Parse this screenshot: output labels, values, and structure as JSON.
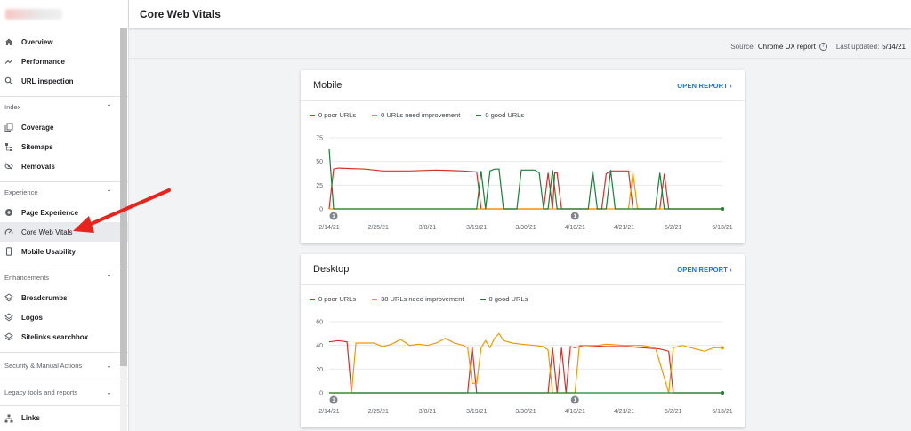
{
  "header": {
    "title": "Core Web Vitals"
  },
  "source_bar": {
    "source_label": "Source:",
    "source_value": "Chrome UX report",
    "updated_label": "Last updated:",
    "updated_value": "5/14/21"
  },
  "sidebar": {
    "top_items": [
      {
        "label": "Overview",
        "icon": "home-icon"
      },
      {
        "label": "Performance",
        "icon": "trending-up-icon"
      },
      {
        "label": "URL inspection",
        "icon": "search-icon"
      }
    ],
    "index": {
      "label": "Index",
      "items": [
        {
          "label": "Coverage",
          "icon": "coverage-icon"
        },
        {
          "label": "Sitemaps",
          "icon": "sitemap-icon"
        },
        {
          "label": "Removals",
          "icon": "removals-icon"
        }
      ]
    },
    "experience": {
      "label": "Experience",
      "items": [
        {
          "label": "Page Experience",
          "icon": "add-circle-icon"
        },
        {
          "label": "Core Web Vitals",
          "icon": "speedometer-icon"
        },
        {
          "label": "Mobile Usability",
          "icon": "phone-icon"
        }
      ]
    },
    "enhancements": {
      "label": "Enhancements",
      "items": [
        {
          "label": "Breadcrumbs",
          "icon": "layers-icon"
        },
        {
          "label": "Logos",
          "icon": "layers-icon"
        },
        {
          "label": "Sitelinks searchbox",
          "icon": "layers-icon"
        }
      ]
    },
    "security": {
      "label": "Security & Manual Actions"
    },
    "legacy": {
      "label": "Legacy tools and reports"
    },
    "links": {
      "label": "Links",
      "icon": "links-icon"
    }
  },
  "colors": {
    "poor": "#d93025",
    "needs_improvement": "#f29900",
    "good": "#188038",
    "accent": "#1a73e8",
    "arrow": "#e8231c"
  },
  "chart_data": [
    {
      "type": "line",
      "title": "Mobile",
      "action": "OPEN REPORT",
      "legend": [
        "0 poor URLs",
        "0 URLs need improvement",
        "0 good URLs"
      ],
      "x_ticks": [
        "2/14/21",
        "2/25/21",
        "3/8/21",
        "3/19/21",
        "3/30/21",
        "4/10/21",
        "4/21/21",
        "5/2/21",
        "5/13/21"
      ],
      "y_ticks": [
        0,
        25,
        50,
        75
      ],
      "ylim": [
        0,
        75
      ],
      "annotations": [
        "1",
        "1"
      ],
      "annotation_days": [
        1,
        55
      ],
      "grid": true,
      "days": 89,
      "series": [
        {
          "name": "poor",
          "points": [
            [
              0,
              0
            ],
            [
              1,
              42
            ],
            [
              2,
              43
            ],
            [
              8,
              42
            ],
            [
              12,
              40
            ],
            [
              18,
              40
            ],
            [
              24,
              41
            ],
            [
              30,
              40
            ],
            [
              33,
              39
            ],
            [
              34,
              0
            ],
            [
              48,
              0
            ],
            [
              49,
              38
            ],
            [
              50,
              0
            ],
            [
              50.5,
              38
            ],
            [
              51,
              38
            ],
            [
              52,
              0
            ],
            [
              61,
              0
            ],
            [
              62,
              37
            ],
            [
              63,
              40
            ],
            [
              67,
              40
            ],
            [
              68,
              0
            ],
            [
              74,
              0
            ],
            [
              75,
              37
            ],
            [
              76,
              0
            ],
            [
              88,
              0
            ]
          ]
        },
        {
          "name": "needs improvement",
          "points": [
            [
              0,
              0
            ],
            [
              67,
              0
            ],
            [
              68,
              38
            ],
            [
              69,
              0
            ],
            [
              88,
              0
            ]
          ]
        },
        {
          "name": "good",
          "points": [
            [
              0,
              63
            ],
            [
              1,
              0
            ],
            [
              33,
              0
            ],
            [
              34,
              40
            ],
            [
              35,
              0
            ],
            [
              36,
              40
            ],
            [
              37,
              42
            ],
            [
              38,
              42
            ],
            [
              39,
              0
            ],
            [
              42,
              0
            ],
            [
              43,
              41
            ],
            [
              46,
              41
            ],
            [
              47,
              38
            ],
            [
              48,
              0
            ],
            [
              49,
              0
            ],
            [
              50,
              41
            ],
            [
              51,
              0
            ],
            [
              58,
              0
            ],
            [
              59,
              40
            ],
            [
              60,
              0
            ],
            [
              62,
              0
            ],
            [
              63,
              41
            ],
            [
              64,
              0
            ],
            [
              73,
              0
            ],
            [
              74,
              38
            ],
            [
              75,
              0
            ],
            [
              88,
              0
            ]
          ]
        }
      ]
    },
    {
      "type": "line",
      "title": "Desktop",
      "action": "OPEN REPORT",
      "legend": [
        "0 poor URLs",
        "38 URLs need improvement",
        "0 good URLs"
      ],
      "x_ticks": [
        "2/14/21",
        "2/25/21",
        "3/8/21",
        "3/19/21",
        "3/30/21",
        "4/10/21",
        "4/21/21",
        "5/2/21",
        "5/13/21"
      ],
      "y_ticks": [
        0,
        20,
        40,
        60
      ],
      "ylim": [
        0,
        60
      ],
      "annotations": [
        "1",
        "1"
      ],
      "annotation_days": [
        1,
        55
      ],
      "grid": true,
      "days": 89,
      "series": [
        {
          "name": "poor",
          "points": [
            [
              0,
              43
            ],
            [
              2,
              44
            ],
            [
              4,
              43
            ],
            [
              5,
              0
            ],
            [
              31,
              0
            ],
            [
              32,
              39
            ],
            [
              33,
              0
            ],
            [
              49,
              0
            ],
            [
              50,
              38
            ],
            [
              51,
              0
            ],
            [
              52,
              38
            ],
            [
              53,
              0
            ],
            [
              54,
              39
            ],
            [
              55,
              38
            ],
            [
              57,
              40
            ],
            [
              62,
              39
            ],
            [
              67,
              39
            ],
            [
              70,
              38
            ],
            [
              74,
              37
            ],
            [
              76,
              35
            ],
            [
              77,
              0
            ],
            [
              88,
              0
            ]
          ]
        },
        {
          "name": "needs improvement",
          "points": [
            [
              0,
              0
            ],
            [
              5,
              0
            ],
            [
              6,
              42
            ],
            [
              10,
              42
            ],
            [
              12,
              39
            ],
            [
              14,
              41
            ],
            [
              16,
              45
            ],
            [
              18,
              40
            ],
            [
              20,
              41
            ],
            [
              22,
              40
            ],
            [
              24,
              42
            ],
            [
              26,
              46
            ],
            [
              28,
              42
            ],
            [
              30,
              40
            ],
            [
              31,
              38
            ],
            [
              32,
              8
            ],
            [
              33,
              8
            ],
            [
              34,
              38
            ],
            [
              35,
              44
            ],
            [
              36,
              38
            ],
            [
              37,
              46
            ],
            [
              38,
              50
            ],
            [
              39,
              44
            ],
            [
              41,
              42
            ],
            [
              43,
              41
            ],
            [
              46,
              40
            ],
            [
              48,
              39
            ],
            [
              49,
              36
            ],
            [
              50,
              0
            ],
            [
              55,
              0
            ],
            [
              56,
              40
            ],
            [
              60,
              40
            ],
            [
              62,
              41
            ],
            [
              66,
              40
            ],
            [
              70,
              40
            ],
            [
              73,
              38
            ],
            [
              76,
              0
            ],
            [
              77,
              38
            ],
            [
              79,
              40
            ],
            [
              82,
              37
            ],
            [
              84,
              35
            ],
            [
              86,
              38
            ],
            [
              88,
              38
            ]
          ]
        },
        {
          "name": "good",
          "points": [
            [
              0,
              0
            ],
            [
              88,
              0
            ]
          ]
        }
      ]
    }
  ]
}
